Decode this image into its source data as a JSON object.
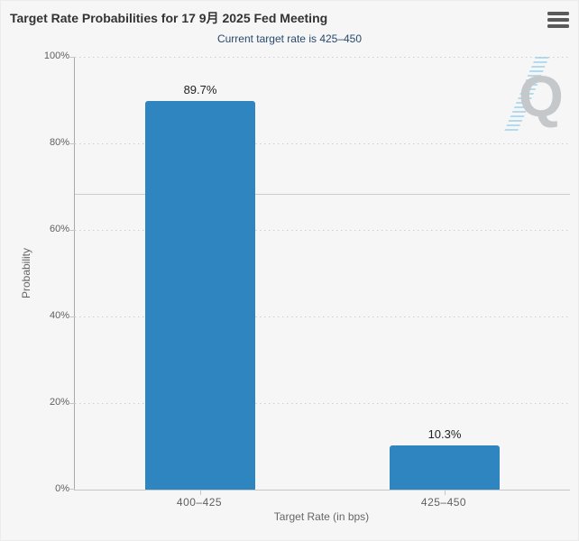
{
  "header": {
    "title": "Target Rate Probabilities for 17 9月 2025 Fed Meeting",
    "subtitle": "Current target rate is 425–450",
    "menu_icon": "hamburger-menu"
  },
  "chart_data": {
    "type": "bar",
    "title": "Target Rate Probabilities for 17 9月 2025 Fed Meeting",
    "subtitle": "Current target rate is 425–450",
    "categories": [
      "400–425",
      "425–450"
    ],
    "values": [
      89.7,
      10.3
    ],
    "data_labels": [
      "89.7%",
      "10.3%"
    ],
    "xlabel": "Target Rate (in bps)",
    "ylabel": "Probability",
    "ylim": [
      0,
      100
    ],
    "ytick_labels": [
      "0%",
      "20%",
      "40%",
      "60%",
      "80%",
      "100%"
    ],
    "grid": "dotted-horizontal",
    "legend": "none",
    "reference_line_y": 68.8,
    "watermark": "Q"
  },
  "colors": {
    "background": "#F6F6F6",
    "title_text": "#333333",
    "subtitle_text": "#27496D",
    "axis_text": "#606060",
    "axis_line": "#C6C6C6",
    "bar": "#2F85BF"
  }
}
